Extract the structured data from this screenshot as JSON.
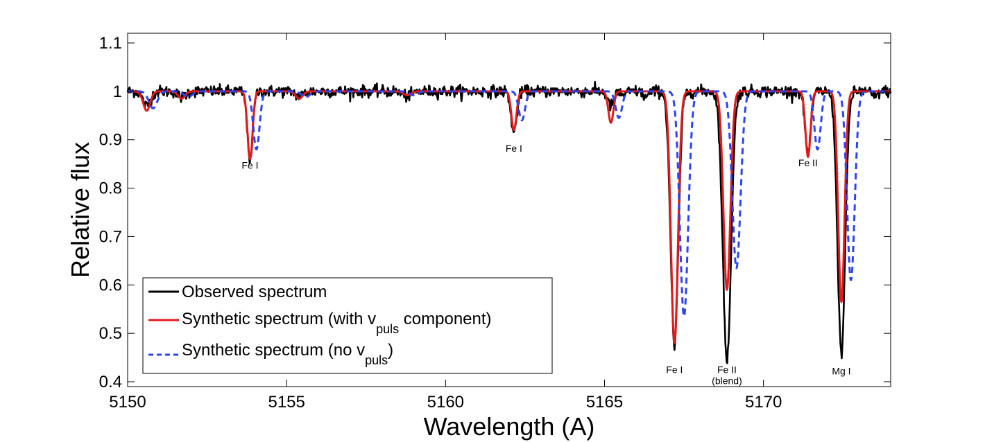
{
  "chart_data": {
    "type": "line",
    "title": "",
    "xlabel": "Wavelength (A)",
    "ylabel": "Relative flux",
    "xlim": [
      5150,
      5174
    ],
    "ylim": [
      0.39,
      1.12
    ],
    "xticks": [
      5150,
      5155,
      5160,
      5165,
      5170
    ],
    "xtick_labels": [
      "5150",
      "5155",
      "5160",
      "5165",
      "5170"
    ],
    "yticks": [
      0.4,
      0.5,
      0.6,
      0.7,
      0.8,
      0.9,
      1.0,
      1.1
    ],
    "ytick_labels": [
      "0.4",
      "0.5",
      "0.6",
      "0.7",
      "0.8",
      "0.9",
      "1",
      "1.1"
    ],
    "legend_position": "bottom-left",
    "series": [
      {
        "name": "Observed spectrum",
        "style": "solid",
        "color": "#000000",
        "noise": 0.006,
        "lines": [
          {
            "center": 5150.6,
            "depth": 0.03,
            "width": 0.12
          },
          {
            "center": 5151.7,
            "depth": 0.012,
            "width": 0.12
          },
          {
            "center": 5153.85,
            "depth": 0.14,
            "width": 0.085
          },
          {
            "center": 5155.4,
            "depth": 0.01,
            "width": 0.12
          },
          {
            "center": 5158.8,
            "depth": 0.01,
            "width": 0.15
          },
          {
            "center": 5162.15,
            "depth": 0.085,
            "width": 0.09
          },
          {
            "center": 5165.2,
            "depth": 0.03,
            "width": 0.1
          },
          {
            "center": 5165.6,
            "depth": 0.008,
            "width": 0.08
          },
          {
            "center": 5166.3,
            "depth": 0.012,
            "width": 0.08
          },
          {
            "center": 5167.2,
            "depth": 0.53,
            "width": 0.12
          },
          {
            "center": 5168.85,
            "depth": 0.555,
            "width": 0.13
          },
          {
            "center": 5171.4,
            "depth": 0.13,
            "width": 0.09
          },
          {
            "center": 5172.45,
            "depth": 0.54,
            "width": 0.12
          },
          {
            "center": 5173.5,
            "depth": 0.012,
            "width": 0.08
          }
        ]
      },
      {
        "name": "Synthetic spectrum (with v",
        "name_sub": "puls",
        "name_suffix": " component)",
        "style": "solid",
        "color": "#e31a1c",
        "noise": 0,
        "lines": [
          {
            "center": 5150.6,
            "depth": 0.04,
            "width": 0.11
          },
          {
            "center": 5151.7,
            "depth": 0.015,
            "width": 0.11
          },
          {
            "center": 5153.85,
            "depth": 0.14,
            "width": 0.08
          },
          {
            "center": 5155.4,
            "depth": 0.015,
            "width": 0.11
          },
          {
            "center": 5158.8,
            "depth": 0.008,
            "width": 0.12
          },
          {
            "center": 5162.15,
            "depth": 0.08,
            "width": 0.08
          },
          {
            "center": 5165.2,
            "depth": 0.065,
            "width": 0.08
          },
          {
            "center": 5167.2,
            "depth": 0.52,
            "width": 0.11
          },
          {
            "center": 5168.85,
            "depth": 0.41,
            "width": 0.11
          },
          {
            "center": 5171.4,
            "depth": 0.135,
            "width": 0.08
          },
          {
            "center": 5172.45,
            "depth": 0.435,
            "width": 0.1
          }
        ]
      },
      {
        "name": "Synthetic spectrum (no v",
        "name_sub": "puls",
        "name_suffix": ")",
        "style": "dashed",
        "color": "#2b44f0",
        "noise": 0,
        "lines": [
          {
            "center": 5150.8,
            "depth": 0.035,
            "width": 0.13
          },
          {
            "center": 5151.9,
            "depth": 0.012,
            "width": 0.13
          },
          {
            "center": 5154.05,
            "depth": 0.12,
            "width": 0.1
          },
          {
            "center": 5155.6,
            "depth": 0.012,
            "width": 0.13
          },
          {
            "center": 5159.0,
            "depth": 0.008,
            "width": 0.13
          },
          {
            "center": 5162.4,
            "depth": 0.06,
            "width": 0.1
          },
          {
            "center": 5165.45,
            "depth": 0.055,
            "width": 0.1
          },
          {
            "center": 5167.5,
            "depth": 0.465,
            "width": 0.13
          },
          {
            "center": 5169.15,
            "depth": 0.365,
            "width": 0.13
          },
          {
            "center": 5171.7,
            "depth": 0.12,
            "width": 0.1
          },
          {
            "center": 5172.75,
            "depth": 0.39,
            "width": 0.12
          }
        ]
      }
    ],
    "annotations": [
      {
        "text": "Fe I",
        "x": 5153.85,
        "y": 0.84
      },
      {
        "text": "Fe I",
        "x": 5162.15,
        "y": 0.875
      },
      {
        "text": "Fe I",
        "x": 5167.2,
        "y": 0.418
      },
      {
        "text": "Fe II",
        "x": 5168.85,
        "y": 0.418
      },
      {
        "text": "(blend)",
        "x": 5168.85,
        "y": 0.395
      },
      {
        "text": "Fe II",
        "x": 5171.4,
        "y": 0.845
      },
      {
        "text": "Mg I",
        "x": 5172.45,
        "y": 0.415
      }
    ]
  }
}
